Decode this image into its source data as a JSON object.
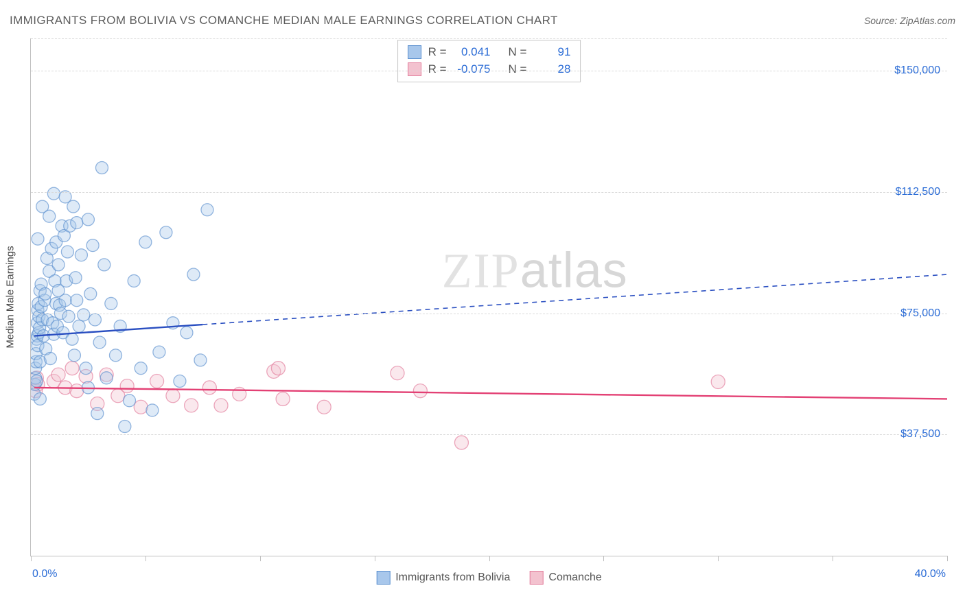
{
  "title": "IMMIGRANTS FROM BOLIVIA VS COMANCHE MEDIAN MALE EARNINGS CORRELATION CHART",
  "source_label": "Source: ZipAtlas.com",
  "watermark": {
    "zip": "ZIP",
    "atlas": "atlas"
  },
  "chart": {
    "type": "scatter",
    "background_color": "#ffffff",
    "grid_color": "#d9d9d9",
    "axis_color": "#bfbfbf",
    "tick_label_color": "#2b6cd6",
    "title_color": "#5c5c5c",
    "xlim": [
      0.0,
      40.0
    ],
    "ylim": [
      0,
      160000
    ],
    "ytick_values": [
      37500,
      75000,
      112500,
      150000
    ],
    "ytick_labels": [
      "$37,500",
      "$75,000",
      "$112,500",
      "$150,000"
    ],
    "xtick_values": [
      0.0,
      5.0,
      10.0,
      15.0,
      20.0,
      25.0,
      30.0,
      35.0,
      40.0
    ],
    "x_end_labels": {
      "min": "0.0%",
      "max": "40.0%"
    },
    "y_axis_label": "Median Male Earnings",
    "marker_radius_series1": 9,
    "marker_radius_series2": 10,
    "marker_opacity": 0.38,
    "regression_line_width": 2.4,
    "title_fontsize": 17,
    "label_fontsize": 15,
    "tick_fontsize": 16
  },
  "series": [
    {
      "name": "Immigrants from Bolivia",
      "color_fill": "#a8c7eb",
      "color_stroke": "#5a8fce",
      "trend_color": "#2a4fc1",
      "R": "0.041",
      "N": "91",
      "trendline": {
        "x1": 0.15,
        "y1": 68000,
        "x2_solid": 7.5,
        "y2_solid": 71500,
        "x2_dashed": 40.0,
        "y2_dashed": 87000
      },
      "points": [
        [
          0.15,
          50000
        ],
        [
          0.18,
          53000
        ],
        [
          0.2,
          55000
        ],
        [
          0.2,
          58000
        ],
        [
          0.22,
          60000
        ],
        [
          0.22,
          62500
        ],
        [
          0.25,
          54000
        ],
        [
          0.25,
          67000
        ],
        [
          0.28,
          68000
        ],
        [
          0.28,
          72000
        ],
        [
          0.3,
          65000
        ],
        [
          0.3,
          76000
        ],
        [
          0.32,
          78000
        ],
        [
          0.35,
          69000
        ],
        [
          0.35,
          74000
        ],
        [
          0.38,
          70500
        ],
        [
          0.4,
          60000
        ],
        [
          0.4,
          82000
        ],
        [
          0.45,
          77000
        ],
        [
          0.45,
          84000
        ],
        [
          0.5,
          73000
        ],
        [
          0.55,
          68000
        ],
        [
          0.6,
          79000
        ],
        [
          0.62,
          81000
        ],
        [
          0.65,
          64000
        ],
        [
          0.7,
          92000
        ],
        [
          0.72,
          73000
        ],
        [
          0.8,
          88000
        ],
        [
          0.85,
          61000
        ],
        [
          0.9,
          95000
        ],
        [
          0.95,
          72000
        ],
        [
          1.0,
          68500
        ],
        [
          1.05,
          85000
        ],
        [
          1.1,
          97000
        ],
        [
          1.1,
          78000
        ],
        [
          1.15,
          71000
        ],
        [
          1.2,
          90000
        ],
        [
          1.2,
          82000
        ],
        [
          1.25,
          77500
        ],
        [
          1.3,
          75000
        ],
        [
          1.35,
          102000
        ],
        [
          1.4,
          69000
        ],
        [
          1.45,
          99000
        ],
        [
          1.5,
          79000
        ],
        [
          1.55,
          85000
        ],
        [
          1.6,
          94000
        ],
        [
          1.65,
          74000
        ],
        [
          1.7,
          102000
        ],
        [
          1.8,
          67000
        ],
        [
          1.85,
          108000
        ],
        [
          1.9,
          62000
        ],
        [
          1.95,
          86000
        ],
        [
          2.0,
          79000
        ],
        [
          2.1,
          71000
        ],
        [
          2.2,
          93000
        ],
        [
          2.3,
          74500
        ],
        [
          2.4,
          58000
        ],
        [
          2.5,
          52000
        ],
        [
          2.6,
          81000
        ],
        [
          2.7,
          96000
        ],
        [
          2.8,
          73000
        ],
        [
          2.9,
          44000
        ],
        [
          3.0,
          66000
        ],
        [
          3.1,
          120000
        ],
        [
          3.2,
          90000
        ],
        [
          3.3,
          55000
        ],
        [
          3.5,
          78000
        ],
        [
          3.7,
          62000
        ],
        [
          3.9,
          71000
        ],
        [
          4.1,
          40000
        ],
        [
          4.3,
          48000
        ],
        [
          4.5,
          85000
        ],
        [
          4.8,
          58000
        ],
        [
          5.0,
          97000
        ],
        [
          5.3,
          45000
        ],
        [
          5.6,
          63000
        ],
        [
          5.9,
          100000
        ],
        [
          6.2,
          72000
        ],
        [
          6.5,
          54000
        ],
        [
          6.8,
          69000
        ],
        [
          7.1,
          87000
        ],
        [
          7.4,
          60500
        ],
        [
          7.7,
          107000
        ],
        [
          1.0,
          112000
        ],
        [
          1.5,
          111000
        ],
        [
          2.0,
          103000
        ],
        [
          0.5,
          108000
        ],
        [
          0.8,
          105000
        ],
        [
          0.3,
          98000
        ],
        [
          2.5,
          104000
        ],
        [
          0.4,
          48500
        ]
      ]
    },
    {
      "name": "Comanche",
      "color_fill": "#f3c2cf",
      "color_stroke": "#e27a9a",
      "trend_color": "#e34074",
      "R": "-0.075",
      "N": "28",
      "trendline": {
        "x1": 0.15,
        "y1": 52000,
        "x2_solid": 40.0,
        "y2_solid": 48500
      },
      "points": [
        [
          0.2,
          51000
        ],
        [
          0.25,
          55000
        ],
        [
          0.3,
          53000
        ],
        [
          1.0,
          54000
        ],
        [
          1.2,
          56000
        ],
        [
          1.5,
          52000
        ],
        [
          1.8,
          58000
        ],
        [
          2.0,
          51000
        ],
        [
          2.4,
          55500
        ],
        [
          2.9,
          47000
        ],
        [
          3.3,
          56000
        ],
        [
          3.8,
          49500
        ],
        [
          4.2,
          52500
        ],
        [
          4.8,
          46000
        ],
        [
          5.5,
          54000
        ],
        [
          6.2,
          49500
        ],
        [
          7.0,
          46500
        ],
        [
          7.8,
          52000
        ],
        [
          8.3,
          46500
        ],
        [
          9.1,
          50000
        ],
        [
          10.6,
          57000
        ],
        [
          11.0,
          48500
        ],
        [
          12.8,
          46000
        ],
        [
          16.0,
          56500
        ],
        [
          17.0,
          51000
        ],
        [
          18.8,
          35000
        ],
        [
          30.0,
          53800
        ],
        [
          10.8,
          58000
        ]
      ]
    }
  ],
  "legend": {
    "r_label": "R =",
    "n_label": "N ="
  }
}
